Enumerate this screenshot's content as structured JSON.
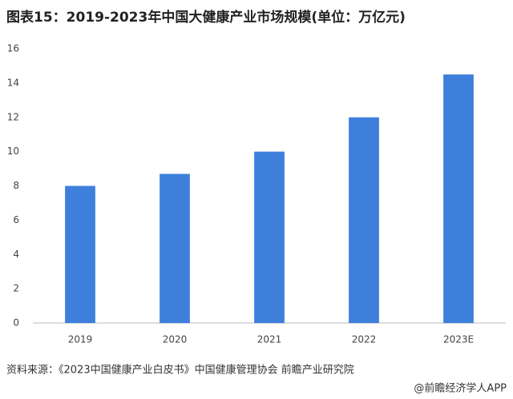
{
  "chart_data": {
    "type": "bar",
    "title": "图表15：2019-2023年中国大健康产业市场规模(单位：万亿元)",
    "categories": [
      "2019",
      "2020",
      "2021",
      "2022",
      "2023E"
    ],
    "values": [
      8.0,
      8.7,
      10.0,
      12.0,
      14.5
    ],
    "color": "#3d7fdb",
    "ylim": [
      0,
      16
    ],
    "yticks": [
      0,
      2,
      4,
      6,
      8,
      10,
      12,
      14,
      16
    ],
    "grid": false,
    "source": "资料来源：《2023中国健康产业白皮书》中国健康管理协会 前瞻产业研究院",
    "credit": "@前瞻经济学人APP"
  }
}
